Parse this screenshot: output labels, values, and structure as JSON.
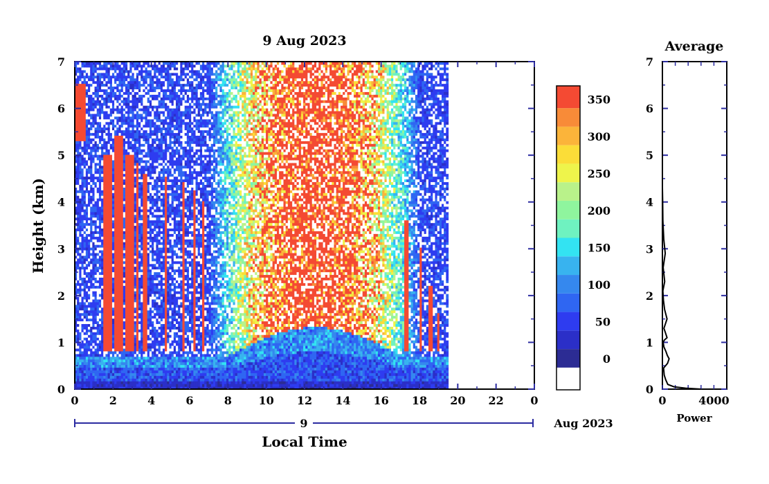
{
  "chart_data": [
    {
      "type": "heatmap",
      "title": "9 Aug 2023",
      "ylabel": "Height (km)",
      "xlabel": "Local Time",
      "x_ticks": [
        "0",
        "2",
        "4",
        "6",
        "8",
        "10",
        "12",
        "14",
        "16",
        "18",
        "20",
        "22",
        "0"
      ],
      "y_ticks": [
        "0",
        "1",
        "2",
        "3",
        "4",
        "5",
        "6",
        "7"
      ],
      "xlim": [
        0,
        24
      ],
      "ylim": [
        0,
        7
      ],
      "date_bar": {
        "day_label": "9",
        "month_label": "Aug 2023"
      },
      "data_end_hour": 19.5,
      "colorbar": {
        "tick_labels": [
          "0",
          "50",
          "100",
          "150",
          "200",
          "250",
          "300",
          "350"
        ],
        "tick_values": [
          0,
          50,
          100,
          150,
          200,
          250,
          300,
          350
        ],
        "range": [
          -30,
          380
        ],
        "levels": [
          {
            "min": -30,
            "max": 0,
            "color": "#ffffff"
          },
          {
            "min": 0,
            "max": 25,
            "color": "#2c2c94"
          },
          {
            "min": 25,
            "max": 50,
            "color": "#2b2fc8"
          },
          {
            "min": 50,
            "max": 75,
            "color": "#2e3cf0"
          },
          {
            "min": 75,
            "max": 100,
            "color": "#2f66f2"
          },
          {
            "min": 100,
            "max": 125,
            "color": "#3588ee"
          },
          {
            "min": 125,
            "max": 150,
            "color": "#38b3ef"
          },
          {
            "min": 150,
            "max": 175,
            "color": "#33e3f2"
          },
          {
            "min": 175,
            "max": 200,
            "color": "#6ff2c0"
          },
          {
            "min": 200,
            "max": 225,
            "color": "#8ff59e"
          },
          {
            "min": 225,
            "max": 250,
            "color": "#b9f28a"
          },
          {
            "min": 250,
            "max": 275,
            "color": "#eef44b"
          },
          {
            "min": 275,
            "max": 300,
            "color": "#fbdd38"
          },
          {
            "min": 300,
            "max": 325,
            "color": "#fbb43a"
          },
          {
            "min": 325,
            "max": 350,
            "color": "#f88b38"
          },
          {
            "min": 350,
            "max": 380,
            "color": "#f44a33"
          }
        ]
      },
      "dense_columns_hours": [
        {
          "start": 1.4,
          "end": 1.9,
          "top_km": 5.0
        },
        {
          "start": 2.0,
          "end": 2.5,
          "top_km": 5.4
        },
        {
          "start": 2.6,
          "end": 3.0,
          "top_km": 5.0
        },
        {
          "start": 3.1,
          "end": 3.3,
          "top_km": 4.8
        },
        {
          "start": 3.5,
          "end": 3.7,
          "top_km": 4.6
        },
        {
          "start": 4.6,
          "end": 4.75,
          "top_km": 4.5
        },
        {
          "start": 5.6,
          "end": 5.7,
          "top_km": 4.4
        },
        {
          "start": 6.1,
          "end": 6.2,
          "top_km": 4.2
        },
        {
          "start": 6.6,
          "end": 6.7,
          "top_km": 4.0
        },
        {
          "start": 17.2,
          "end": 17.4,
          "top_km": 3.6
        },
        {
          "start": 17.9,
          "end": 18.1,
          "top_km": 3.0
        },
        {
          "start": 18.4,
          "end": 18.6,
          "top_km": 2.2
        },
        {
          "start": 18.9,
          "end": 19.0,
          "top_km": 1.6
        }
      ],
      "elevated_cloud_hours": [
        0.0,
        0.55
      ],
      "elevated_cloud_km": [
        5.3,
        6.5
      ]
    },
    {
      "type": "line",
      "title": "Average",
      "xlabel": "Power",
      "x_ticks": [
        "0",
        "4000"
      ],
      "y_ticks": [
        "0",
        "1",
        "2",
        "3",
        "4",
        "5",
        "6",
        "7"
      ],
      "xlim": [
        0,
        5000
      ],
      "ylim": [
        0,
        7
      ],
      "profile": {
        "power": [
          3000,
          1800,
          900,
          420,
          260,
          140,
          90,
          400,
          520,
          380,
          280,
          120,
          60,
          150,
          360,
          240,
          120,
          360,
          170,
          80,
          40,
          180,
          60,
          220,
          110,
          40,
          20,
          0,
          0,
          0,
          0,
          0,
          0,
          0,
          0
        ],
        "height": [
          0.0,
          0.02,
          0.05,
          0.1,
          0.2,
          0.3,
          0.45,
          0.55,
          0.65,
          0.72,
          0.8,
          0.9,
          1.0,
          1.05,
          1.1,
          1.2,
          1.3,
          1.5,
          1.7,
          1.9,
          2.1,
          2.3,
          2.6,
          2.9,
          3.2,
          3.6,
          4.0,
          4.3,
          4.6,
          5.0,
          5.5,
          6.0,
          6.3,
          6.6,
          7.0
        ]
      }
    }
  ]
}
